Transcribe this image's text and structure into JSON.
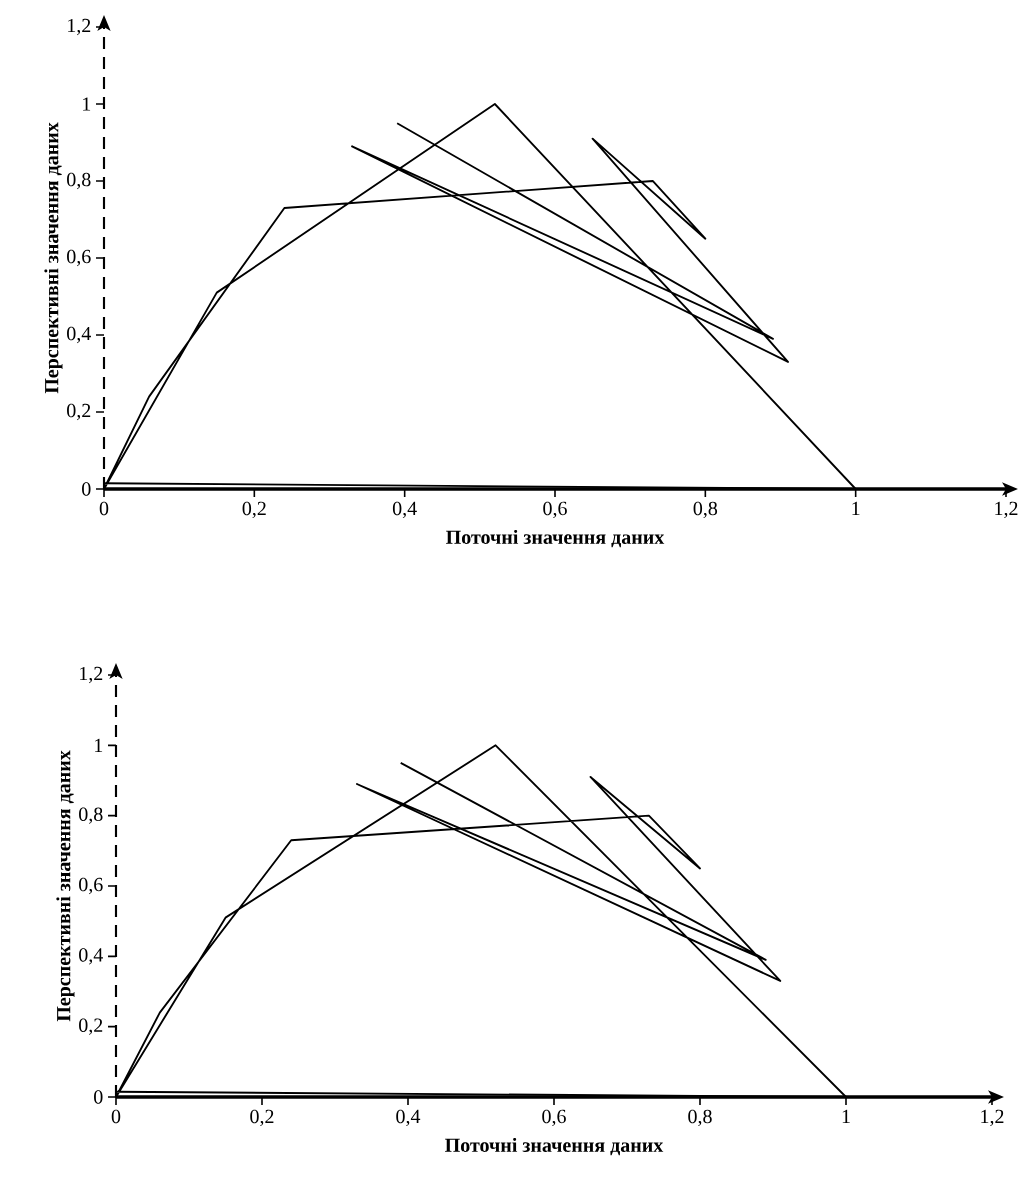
{
  "chart_data": [
    {
      "type": "line",
      "xlabel": "Поточні значення даних",
      "ylabel": "Перспективні значення даних",
      "xlim": [
        0,
        1.2
      ],
      "ylim": [
        0,
        1.2
      ],
      "xticks": [
        0,
        {
          "value": 0.2,
          "label": "0,2"
        },
        {
          "value": 0.4,
          "label": "0,4"
        },
        {
          "value": 0.6,
          "label": "0,6"
        },
        {
          "value": 0.8,
          "label": "0,8"
        },
        1,
        {
          "value": 1.2,
          "label": "1,2"
        }
      ],
      "yticks": [
        0,
        {
          "value": 0.2,
          "label": "0,2"
        },
        {
          "value": 0.4,
          "label": "0,4"
        },
        {
          "value": 0.6,
          "label": "0,6"
        },
        {
          "value": 0.8,
          "label": "0,8"
        },
        1,
        {
          "value": 1.2,
          "label": "1,2"
        }
      ],
      "grid": false,
      "marker": "none",
      "line_style": "solid",
      "series": [
        {
          "color": "#000000",
          "x": [
            0.39,
            0.89,
            0.33,
            0.91,
            0.65,
            0.8,
            0.73,
            0.24,
            0.06,
            0,
            0.15,
            0.52,
            1,
            0
          ],
          "values": [
            0.95,
            0.39,
            0.89,
            0.33,
            0.91,
            0.65,
            0.8,
            0.73,
            0.24,
            0,
            0.51,
            1.0,
            0,
            0.015
          ]
        }
      ]
    },
    {
      "type": "line",
      "xlabel": "Поточні значення даних",
      "ylabel": "Перспективні значення даних",
      "xlim": [
        0,
        1.2
      ],
      "ylim": [
        0,
        1.2
      ],
      "xticks": [
        0,
        {
          "value": 0.2,
          "label": "0,2"
        },
        {
          "value": 0.4,
          "label": "0,4"
        },
        {
          "value": 0.6,
          "label": "0,6"
        },
        {
          "value": 0.8,
          "label": "0,8"
        },
        1,
        {
          "value": 1.2,
          "label": "1,2"
        }
      ],
      "yticks": [
        0,
        {
          "value": 0.2,
          "label": "0,2"
        },
        {
          "value": 0.4,
          "label": "0,4"
        },
        {
          "value": 0.6,
          "label": "0,6"
        },
        {
          "value": 0.8,
          "label": "0,8"
        },
        1,
        {
          "value": 1.2,
          "label": "1,2"
        }
      ],
      "grid": false,
      "marker": "none",
      "line_style": "solid",
      "series": [
        {
          "color": "#000000",
          "x": [
            0.39,
            0.89,
            0.33,
            0.91,
            0.65,
            0.8,
            0.73,
            0.24,
            0.06,
            0,
            0.15,
            0.52,
            1,
            0
          ],
          "values": [
            0.95,
            0.39,
            0.89,
            0.33,
            0.91,
            0.65,
            0.8,
            0.73,
            0.24,
            0,
            0.51,
            1.0,
            0,
            0.015
          ]
        }
      ]
    }
  ]
}
